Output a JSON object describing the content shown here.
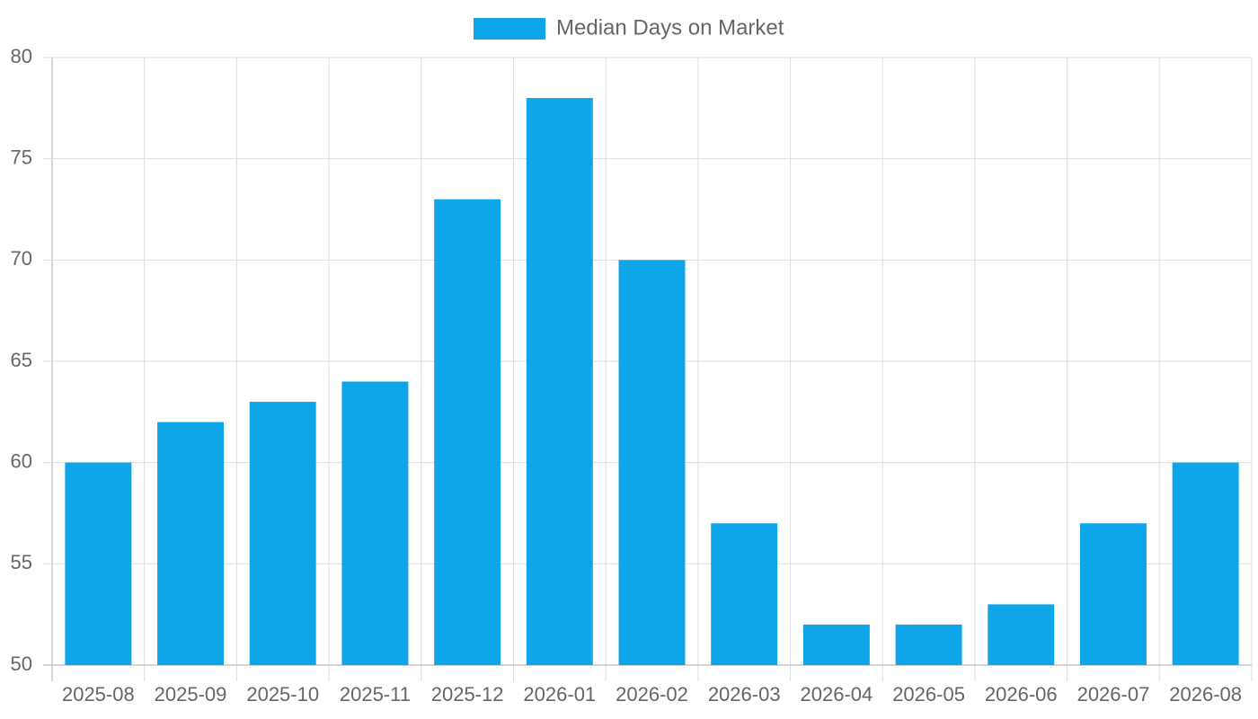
{
  "chart_data": {
    "type": "bar",
    "categories": [
      "2025-08",
      "2025-09",
      "2025-10",
      "2025-11",
      "2025-12",
      "2026-01",
      "2026-02",
      "2026-03",
      "2026-04",
      "2026-05",
      "2026-06",
      "2026-07",
      "2026-08"
    ],
    "series": [
      {
        "name": "Median Days on Market",
        "color": "#0ea5e9",
        "values": [
          60,
          62,
          63,
          64,
          73,
          78,
          70,
          57,
          52,
          52,
          53,
          57,
          60
        ]
      }
    ],
    "ylim": [
      50,
      80
    ],
    "yticks": [
      50,
      55,
      60,
      65,
      70,
      75,
      80
    ],
    "grid": true,
    "legend": "top"
  }
}
